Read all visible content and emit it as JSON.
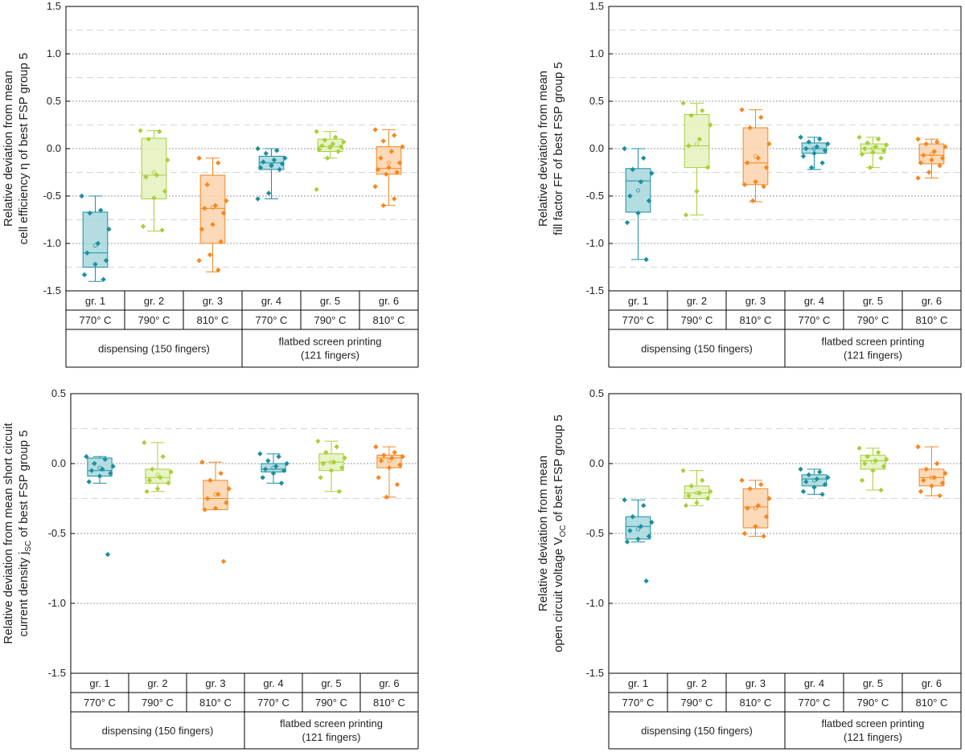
{
  "chart_data": [
    {
      "type": "box",
      "title": "",
      "ylabel_line1": "Relative deviation from mean",
      "ylabel_line2": "cell efficiency η of best FSP group 5",
      "ylim": [
        -1.5,
        1.5
      ],
      "yticks": [
        "1.5",
        "1.0",
        "0.5",
        "0.0",
        "-0.5",
        "-1.0",
        "-1.5"
      ],
      "yticks_values": [
        1.5,
        1.0,
        0.5,
        0.0,
        -0.5,
        -1.0,
        -1.5
      ],
      "minor_dashed": [
        1.25,
        0.75,
        0.25,
        -0.25,
        -0.75,
        -1.25
      ],
      "categories": [
        "gr. 1",
        "gr. 2",
        "gr. 3",
        "gr. 4",
        "gr. 5",
        "gr. 6"
      ],
      "temperatures": [
        "770° C",
        "790° C",
        "810° C",
        "770° C",
        "790° C",
        "810° C"
      ],
      "process_1": "dispensing (150 fingers)",
      "process_2_line1": "flatbed screen printing",
      "process_2_line2": "(121 fingers)",
      "series": [
        {
          "name": "gr. 1",
          "q1": -1.25,
          "median": -1.1,
          "q3": -0.67,
          "mean": -1.02,
          "whisker_low": -1.4,
          "whisker_high": -0.5,
          "points": [
            -0.5,
            -0.65,
            -0.68,
            -0.85,
            -1.0,
            -1.1,
            -1.18,
            -1.22,
            -1.33,
            -1.38
          ]
        },
        {
          "name": "gr. 2",
          "q1": -0.53,
          "median": -0.28,
          "q3": 0.11,
          "mean": -0.25,
          "whisker_low": -0.87,
          "whisker_high": 0.19,
          "points": [
            0.19,
            0.18,
            0.1,
            -0.12,
            -0.28,
            -0.3,
            -0.45,
            -0.52,
            -0.82,
            -0.86
          ]
        },
        {
          "name": "gr. 3",
          "q1": -1.0,
          "median": -0.63,
          "q3": -0.28,
          "mean": -0.62,
          "whisker_low": -1.3,
          "whisker_high": -0.1,
          "points": [
            -0.1,
            -0.15,
            -0.38,
            -0.55,
            -0.6,
            -0.63,
            -0.68,
            -0.8,
            -0.85,
            -0.98,
            -1.12,
            -1.18,
            -1.28
          ]
        },
        {
          "name": "gr. 4",
          "q1": -0.22,
          "median": -0.15,
          "q3": -0.08,
          "mean": -0.17,
          "whisker_low": -0.53,
          "whisker_high": 0.0,
          "points": [
            0.0,
            -0.02,
            -0.05,
            -0.1,
            -0.12,
            -0.14,
            -0.16,
            -0.18,
            -0.2,
            -0.22,
            -0.47,
            -0.53
          ]
        },
        {
          "name": "gr. 5",
          "q1": -0.03,
          "median": 0.02,
          "q3": 0.1,
          "mean": 0.02,
          "whisker_low": -0.1,
          "whisker_high": 0.18,
          "points": [
            0.18,
            0.12,
            0.09,
            0.07,
            0.05,
            0.03,
            0.02,
            0.01,
            -0.01,
            -0.03,
            -0.1,
            -0.43
          ]
        },
        {
          "name": "gr. 6",
          "q1": -0.27,
          "median": -0.21,
          "q3": 0.02,
          "mean": -0.15,
          "whisker_low": -0.6,
          "whisker_high": 0.2,
          "points": [
            0.2,
            0.14,
            0.08,
            0.02,
            -0.03,
            -0.1,
            -0.15,
            -0.2,
            -0.22,
            -0.25,
            -0.27,
            -0.4,
            -0.53,
            -0.6
          ]
        }
      ]
    },
    {
      "type": "box",
      "title": "",
      "ylabel_line1": "Relative deviation from mean",
      "ylabel_line2": "fill factor FF of best FSP group 5",
      "ylim": [
        -1.5,
        1.5
      ],
      "yticks": [
        "1.5",
        "1.0",
        "0.5",
        "0.0",
        "-0.5",
        "-1.0",
        "-1.5"
      ],
      "yticks_values": [
        1.5,
        1.0,
        0.5,
        0.0,
        -0.5,
        -1.0,
        -1.5
      ],
      "minor_dashed": [
        1.25,
        0.75,
        0.25,
        -0.25,
        -0.75,
        -1.25
      ],
      "categories": [
        "gr. 1",
        "gr. 2",
        "gr. 3",
        "gr. 4",
        "gr. 5",
        "gr. 6"
      ],
      "temperatures": [
        "770° C",
        "790° C",
        "810° C",
        "770° C",
        "790° C",
        "810° C"
      ],
      "process_1": "dispensing (150 fingers)",
      "process_2_line1": "flatbed screen printing",
      "process_2_line2": "(121 fingers)",
      "series": [
        {
          "name": "gr. 1",
          "q1": -0.67,
          "median": -0.34,
          "q3": -0.21,
          "mean": -0.44,
          "whisker_low": -1.17,
          "whisker_high": 0.0,
          "points": [
            0.0,
            -0.1,
            -0.22,
            -0.26,
            -0.35,
            -0.5,
            -0.55,
            -0.68,
            -0.78,
            -1.17
          ]
        },
        {
          "name": "gr. 2",
          "q1": -0.2,
          "median": 0.03,
          "q3": 0.36,
          "mean": 0.05,
          "whisker_low": -0.7,
          "whisker_high": 0.48,
          "points": [
            0.48,
            0.4,
            0.35,
            0.25,
            0.1,
            0.03,
            -0.2,
            -0.45,
            -0.7
          ]
        },
        {
          "name": "gr. 3",
          "q1": -0.38,
          "median": -0.15,
          "q3": 0.22,
          "mean": -0.08,
          "whisker_low": -0.56,
          "whisker_high": 0.41,
          "points": [
            0.41,
            0.33,
            0.22,
            0.05,
            -0.1,
            -0.15,
            -0.2,
            -0.35,
            -0.38,
            -0.4,
            -0.55
          ]
        },
        {
          "name": "gr. 4",
          "q1": -0.05,
          "median": 0.0,
          "q3": 0.06,
          "mean": 0.0,
          "whisker_low": -0.22,
          "whisker_high": 0.12,
          "points": [
            0.12,
            0.1,
            0.07,
            0.05,
            0.02,
            0.0,
            -0.02,
            -0.05,
            -0.08,
            -0.15,
            -0.2
          ]
        },
        {
          "name": "gr. 5",
          "q1": -0.05,
          "median": 0.0,
          "q3": 0.05,
          "mean": 0.0,
          "whisker_low": -0.2,
          "whisker_high": 0.12,
          "points": [
            0.12,
            0.1,
            0.06,
            0.04,
            0.02,
            0.0,
            -0.02,
            -0.04,
            -0.06,
            -0.1,
            -0.2
          ]
        },
        {
          "name": "gr. 6",
          "q1": -0.16,
          "median": -0.07,
          "q3": 0.05,
          "mean": -0.06,
          "whisker_low": -0.31,
          "whisker_high": 0.1,
          "points": [
            0.1,
            0.07,
            0.05,
            0.02,
            -0.03,
            -0.07,
            -0.1,
            -0.12,
            -0.15,
            -0.18,
            -0.25,
            -0.31
          ]
        }
      ]
    },
    {
      "type": "box",
      "title": "",
      "ylabel_line1": "Relative deviation from mean short circuit",
      "ylabel_line2_prefix": "current density j",
      "ylabel_line2_sub": "SC",
      "ylabel_line2_suffix": " of best FSP group 5",
      "ylim": [
        -1.5,
        0.5
      ],
      "yticks": [
        "0.5",
        "0.0",
        "-0.5",
        "-1.0",
        "-1.5"
      ],
      "yticks_values": [
        0.5,
        0.0,
        -0.5,
        -1.0,
        -1.5
      ],
      "minor_dashed": [
        0.25,
        -0.25
      ],
      "categories": [
        "gr. 1",
        "gr. 2",
        "gr. 3",
        "gr. 4",
        "gr. 5",
        "gr. 6"
      ],
      "temperatures": [
        "770° C",
        "790° C",
        "810° C",
        "770° C",
        "790° C",
        "810° C"
      ],
      "process_1": "dispensing (150 fingers)",
      "process_2_line1": "flatbed screen printing",
      "process_2_line2": "(121 fingers)",
      "series": [
        {
          "name": "gr. 1",
          "q1": -0.09,
          "median": -0.05,
          "q3": 0.04,
          "mean": -0.03,
          "whisker_low": -0.14,
          "whisker_high": 0.05,
          "points": [
            0.05,
            0.03,
            0.0,
            -0.02,
            -0.04,
            -0.05,
            -0.07,
            -0.09,
            -0.13,
            -0.65
          ]
        },
        {
          "name": "gr. 2",
          "q1": -0.14,
          "median": -0.1,
          "q3": -0.04,
          "mean": -0.08,
          "whisker_low": -0.2,
          "whisker_high": 0.15,
          "points": [
            0.15,
            0.05,
            -0.04,
            -0.06,
            -0.1,
            -0.12,
            -0.14,
            -0.18,
            -0.2
          ]
        },
        {
          "name": "gr. 3",
          "q1": -0.33,
          "median": -0.25,
          "q3": -0.12,
          "mean": -0.22,
          "whisker_low": -0.33,
          "whisker_high": 0.01,
          "points": [
            0.01,
            -0.07,
            -0.12,
            -0.18,
            -0.22,
            -0.25,
            -0.28,
            -0.32,
            -0.33,
            -0.7
          ]
        },
        {
          "name": "gr. 4",
          "q1": -0.06,
          "median": -0.04,
          "q3": 0.0,
          "mean": -0.03,
          "whisker_low": -0.14,
          "whisker_high": 0.07,
          "points": [
            0.07,
            0.05,
            0.02,
            0.0,
            -0.02,
            -0.04,
            -0.05,
            -0.07,
            -0.1,
            -0.14
          ]
        },
        {
          "name": "gr. 5",
          "q1": -0.05,
          "median": 0.01,
          "q3": 0.07,
          "mean": 0.01,
          "whisker_low": -0.2,
          "whisker_high": 0.16,
          "points": [
            0.16,
            0.12,
            0.08,
            0.04,
            0.01,
            0.0,
            -0.03,
            -0.05,
            -0.1,
            -0.2
          ]
        },
        {
          "name": "gr. 6",
          "q1": -0.03,
          "median": 0.04,
          "q3": 0.06,
          "mean": 0.02,
          "whisker_low": -0.24,
          "whisker_high": 0.12,
          "points": [
            0.12,
            0.08,
            0.06,
            0.05,
            0.04,
            0.02,
            -0.01,
            -0.03,
            -0.1,
            -0.15,
            -0.24
          ]
        }
      ]
    },
    {
      "type": "box",
      "title": "",
      "ylabel_line1": "Relative deviation from mean",
      "ylabel_line2_prefix": "open circuit voltage V",
      "ylabel_line2_sub": "OC",
      "ylabel_line2_suffix": " of best FSP group 5",
      "ylim": [
        -1.5,
        0.5
      ],
      "yticks": [
        "0.5",
        "0.0",
        "-0.5",
        "-1.0",
        "-1.5"
      ],
      "yticks_values": [
        0.5,
        0.0,
        -0.5,
        -1.0,
        -1.5
      ],
      "minor_dashed": [
        0.25,
        -0.25
      ],
      "categories": [
        "gr. 1",
        "gr. 2",
        "gr. 3",
        "gr. 4",
        "gr. 5",
        "gr. 6"
      ],
      "temperatures": [
        "770° C",
        "790° C",
        "810° C",
        "770° C",
        "790° C",
        "810° C"
      ],
      "process_1": "dispensing (150 fingers)",
      "process_2_line1": "flatbed screen printing",
      "process_2_line2": "(121 fingers)",
      "series": [
        {
          "name": "gr. 1",
          "q1": -0.54,
          "median": -0.45,
          "q3": -0.38,
          "mean": -0.47,
          "whisker_low": -0.56,
          "whisker_high": -0.26,
          "points": [
            -0.26,
            -0.3,
            -0.38,
            -0.42,
            -0.45,
            -0.48,
            -0.52,
            -0.54,
            -0.56,
            -0.84
          ]
        },
        {
          "name": "gr. 2",
          "q1": -0.25,
          "median": -0.21,
          "q3": -0.16,
          "mean": -0.21,
          "whisker_low": -0.3,
          "whisker_high": -0.05,
          "points": [
            -0.05,
            -0.12,
            -0.16,
            -0.2,
            -0.21,
            -0.23,
            -0.25,
            -0.28,
            -0.3
          ]
        },
        {
          "name": "gr. 3",
          "q1": -0.46,
          "median": -0.31,
          "q3": -0.18,
          "mean": -0.32,
          "whisker_low": -0.52,
          "whisker_high": -0.12,
          "points": [
            -0.12,
            -0.15,
            -0.18,
            -0.25,
            -0.3,
            -0.32,
            -0.38,
            -0.45,
            -0.5,
            -0.52
          ]
        },
        {
          "name": "gr. 4",
          "q1": -0.16,
          "median": -0.11,
          "q3": -0.08,
          "mean": -0.12,
          "whisker_low": -0.22,
          "whisker_high": -0.04,
          "points": [
            -0.04,
            -0.06,
            -0.08,
            -0.1,
            -0.11,
            -0.13,
            -0.15,
            -0.17,
            -0.2,
            -0.22
          ]
        },
        {
          "name": "gr. 5",
          "q1": -0.04,
          "median": 0.02,
          "q3": 0.06,
          "mean": 0.01,
          "whisker_low": -0.19,
          "whisker_high": 0.11,
          "points": [
            0.11,
            0.08,
            0.05,
            0.03,
            0.02,
            0.0,
            -0.02,
            -0.05,
            -0.12,
            -0.19
          ]
        },
        {
          "name": "gr. 6",
          "q1": -0.16,
          "median": -0.1,
          "q3": -0.04,
          "mean": -0.1,
          "whisker_low": -0.23,
          "whisker_high": 0.12,
          "points": [
            0.12,
            0.0,
            -0.04,
            -0.07,
            -0.1,
            -0.12,
            -0.14,
            -0.16,
            -0.2,
            -0.23
          ]
        }
      ]
    }
  ],
  "colors": {
    "teal": "#1b8fa0",
    "teal_fill": "#a7d7dd",
    "green": "#a9cf3b",
    "green_fill": "#e4f1bd",
    "orange": "#f5871f",
    "orange_fill": "#fbd2ac"
  }
}
